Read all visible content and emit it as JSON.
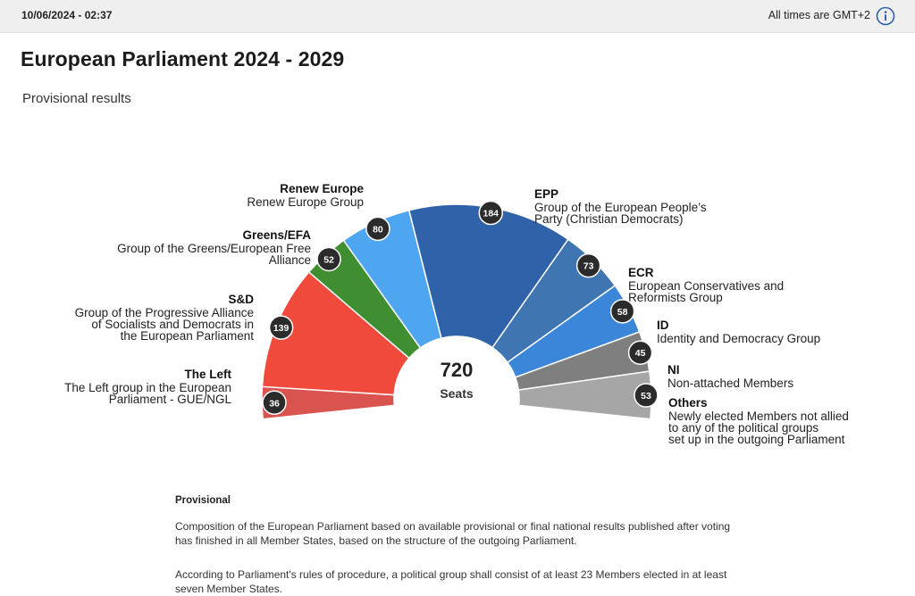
{
  "header": {
    "timestamp": "10/06/2024 - 02:37",
    "timezone_note": "All times are GMT+2",
    "info_icon": "info-icon"
  },
  "page": {
    "title": "European Parliament 2024 - 2029",
    "subtitle": "Provisional results"
  },
  "chart_data": {
    "type": "parliament-hemicycle",
    "total_seats": 720,
    "total_label": "Seats",
    "series": [
      {
        "name": "The Left",
        "description": "The Left group in the European Parliament - GUE/NGL",
        "value": 36,
        "color": "#d9534f"
      },
      {
        "name": "S&D",
        "description": "Group of the Progressive Alliance of Socialists and Democrats in the European Parliament",
        "value": 139,
        "color": "#f04a3c"
      },
      {
        "name": "Greens/EFA",
        "description": "Group of the Greens/European Free Alliance",
        "value": 52,
        "color": "#3f8f32"
      },
      {
        "name": "Renew Europe",
        "description": "Renew Europe Group",
        "value": 80,
        "color": "#4fa6f0"
      },
      {
        "name": "EPP",
        "description": "Group of the European People's Party (Christian Democrats)",
        "value": 184,
        "color": "#2f62a8"
      },
      {
        "name": "ECR",
        "description": "European Conservatives and Reformists Group",
        "value": 73,
        "color": "#3f76b2"
      },
      {
        "name": "ID",
        "description": "Identity and Democracy Group",
        "value": 58,
        "color": "#3b86d8"
      },
      {
        "name": "NI",
        "description": "Non-attached Members",
        "value": 45,
        "color": "#7f7f7f"
      },
      {
        "name": "Others",
        "description": "Newly elected Members not allied to any of the political groups set up in the outgoing Parliament",
        "value": 53,
        "color": "#a6a6a6"
      }
    ]
  },
  "notes": {
    "title": "Provisional",
    "p1": "Composition of the European Parliament based on available provisional or final national results published after voting has finished in all Member States, based on the structure of the outgoing Parliament.",
    "p2": "According to Parliament's rules of procedure, a political group shall consist of at least 23 Members elected in at least seven Member States."
  },
  "colors": {
    "badge": "#2b2b2b",
    "topbar": "#efefef",
    "info_accent": "#2f62a8"
  }
}
